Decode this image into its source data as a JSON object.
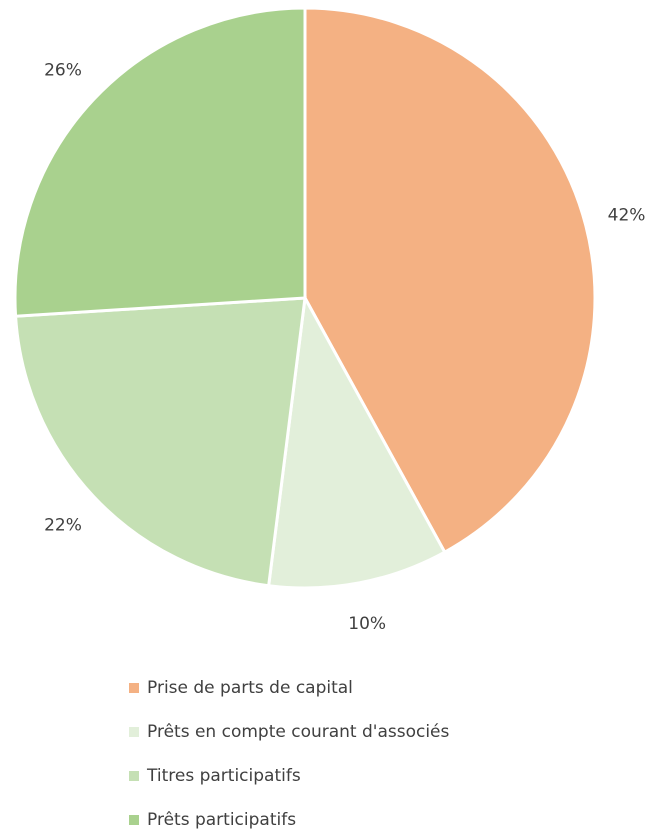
{
  "chart_data": {
    "type": "pie",
    "categories": [
      "Prise de parts de capital",
      "Prêts en compte courant d'associés",
      "Titres participatifs",
      "Prêts participatifs"
    ],
    "values": [
      42,
      10,
      22,
      26
    ],
    "value_labels": [
      "42%",
      "10%",
      "22%",
      "26%"
    ],
    "colors": [
      "#F4B183",
      "#E2EFDA",
      "#C5E0B4",
      "#A9D18E"
    ],
    "legend": "bottom"
  }
}
